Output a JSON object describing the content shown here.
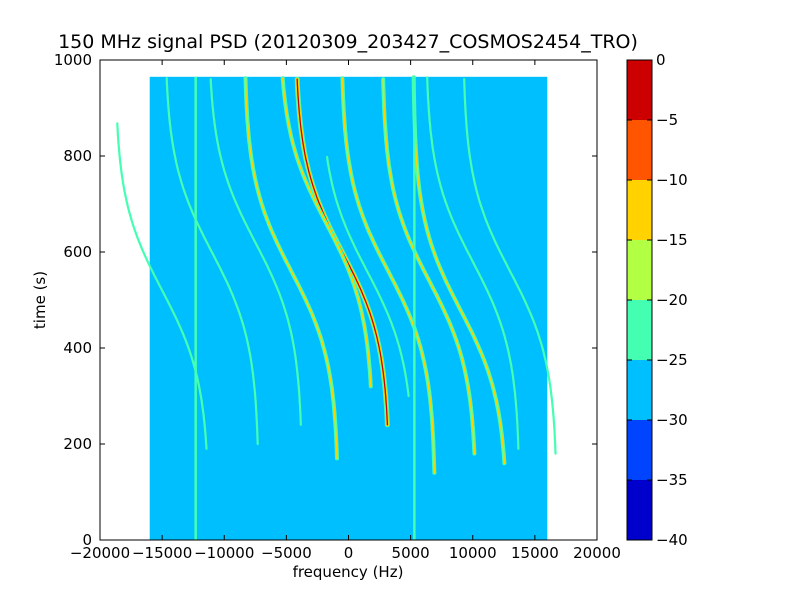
{
  "chart_data": {
    "type": "heatmap",
    "title": "150 MHz signal PSD (20120309_203427_COSMOS2454_TRO)",
    "xlabel": "frequency (Hz)",
    "ylabel": "time (s)",
    "xlim": [
      -20000,
      20000
    ],
    "ylim": [
      0,
      1000
    ],
    "x_ticks": [
      -20000,
      -15000,
      -10000,
      -5000,
      0,
      5000,
      10000,
      15000,
      20000
    ],
    "x_tick_labels": [
      "−20000",
      "−15000",
      "−10000",
      "−5000",
      "0",
      "5000",
      "10000",
      "15000",
      "20000"
    ],
    "y_ticks": [
      0,
      200,
      400,
      600,
      800,
      1000
    ],
    "y_tick_labels": [
      "0",
      "200",
      "400",
      "600",
      "800",
      "1000"
    ],
    "data_extent": {
      "x": [
        -16000,
        16000
      ],
      "y": [
        0,
        965
      ]
    },
    "background_level": -28,
    "background_color": "#00bfff",
    "colorbar": {
      "min": -40,
      "max": 0,
      "ticks": [
        0,
        -5,
        -10,
        -15,
        -20,
        -25,
        -30,
        -35,
        -40
      ],
      "tick_labels": [
        "0",
        "−5",
        "−10",
        "−15",
        "−20",
        "−25",
        "−30",
        "−35",
        "−40"
      ],
      "bands": [
        {
          "from": -40,
          "to": -35,
          "color": "#0000cd"
        },
        {
          "from": -35,
          "to": -30,
          "color": "#0044ff"
        },
        {
          "from": -30,
          "to": -25,
          "color": "#00bfff"
        },
        {
          "from": -25,
          "to": -20,
          "color": "#44ffb2"
        },
        {
          "from": -20,
          "to": -15,
          "color": "#b2ff44"
        },
        {
          "from": -15,
          "to": -10,
          "color": "#ffd200"
        },
        {
          "from": -10,
          "to": -5,
          "color": "#ff5500"
        },
        {
          "from": -5,
          "to": 0,
          "color": "#cc0000"
        }
      ]
    },
    "tracks": [
      {
        "f0": -500,
        "dir": 1,
        "t_start": 240,
        "t_end": 965,
        "t_center": 600,
        "level": "strong"
      },
      {
        "f0": -1800,
        "dir": 1,
        "t_start": 320,
        "t_end": 965,
        "t_center": 660,
        "level": "medium"
      },
      {
        "f0": 3200,
        "dir": 1,
        "t_start": 140,
        "t_end": 965,
        "t_center": 560,
        "level": "medium"
      },
      {
        "f0": 6500,
        "dir": 1,
        "t_start": 180,
        "t_end": 965,
        "t_center": 540,
        "level": "medium"
      },
      {
        "f0": -4600,
        "dir": 1,
        "t_start": 170,
        "t_end": 965,
        "t_center": 560,
        "level": "medium"
      },
      {
        "f0": -7500,
        "dir": 1,
        "t_start": 240,
        "t_end": 965,
        "t_center": 620,
        "level": "weak"
      },
      {
        "f0": -11000,
        "dir": 1,
        "t_start": 200,
        "t_end": 965,
        "t_center": 600,
        "level": "weak"
      },
      {
        "f0": -15000,
        "dir": 1,
        "t_start": 190,
        "t_end": 870,
        "t_center": 520,
        "level": "weak"
      },
      {
        "f0": 10000,
        "dir": 1,
        "t_start": 190,
        "t_end": 965,
        "t_center": 580,
        "level": "weak"
      },
      {
        "f0": 13000,
        "dir": 1,
        "t_start": 180,
        "t_end": 965,
        "t_center": 560,
        "level": "weak"
      },
      {
        "f0": 9000,
        "dir": 1,
        "t_start": 160,
        "t_end": 965,
        "t_center": 480,
        "level": "medium"
      },
      {
        "f0": 1500,
        "dir": 1,
        "t_start": 300,
        "t_end": 800,
        "t_center": 560,
        "level": "weak"
      }
    ],
    "vertical_lines": [
      {
        "f": -12300,
        "t_start": 0,
        "t_end": 965
      },
      {
        "f": 5300,
        "t_start": 0,
        "t_end": 965
      }
    ]
  }
}
